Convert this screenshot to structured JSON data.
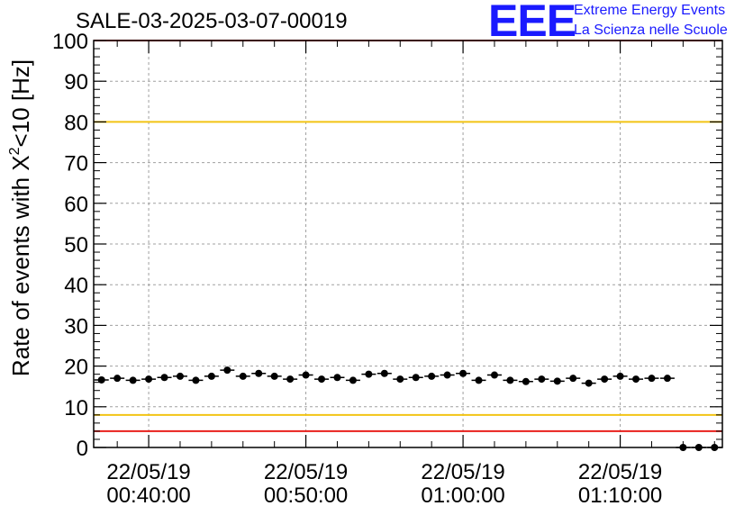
{
  "logo": {
    "letters": "EEE",
    "line1": "Extreme Energy Events",
    "line2": "La Scienza nelle Scuole"
  },
  "chart_data": {
    "type": "scatter",
    "title": "SALE-03-2025-03-07-00019",
    "ylabel_main": "Rate of events with X",
    "ylabel_sup": "2",
    "ylabel_tail": "<10 [Hz]",
    "xlabel": "",
    "ylim": [
      0,
      100
    ],
    "yticks": [
      0,
      10,
      20,
      30,
      40,
      50,
      60,
      70,
      80,
      90,
      100
    ],
    "xlim": [
      "2019-05-22 00:36:30",
      "2019-05-22 01:16:30"
    ],
    "xticks": [
      {
        "time": "2019-05-22 00:40:00",
        "date_label": "22/05/19",
        "time_label": "00:40:00"
      },
      {
        "time": "2019-05-22 00:50:00",
        "date_label": "22/05/19",
        "time_label": "00:50:00"
      },
      {
        "time": "2019-05-22 01:00:00",
        "date_label": "22/05/19",
        "time_label": "01:00:00"
      },
      {
        "time": "2019-05-22 01:10:00",
        "date_label": "22/05/19",
        "time_label": "01:10:00"
      }
    ],
    "grid": true,
    "reference_lines": [
      {
        "y": 100,
        "color": "#e8201c"
      },
      {
        "y": 80,
        "color": "#f2c414"
      },
      {
        "y": 8,
        "color": "#f2c414"
      },
      {
        "y": 4,
        "color": "#e8201c"
      }
    ],
    "series": [
      {
        "color": "#000000",
        "x": [
          "2019-05-22 00:37:00",
          "2019-05-22 00:38:00",
          "2019-05-22 00:39:00",
          "2019-05-22 00:40:00",
          "2019-05-22 00:41:00",
          "2019-05-22 00:42:00",
          "2019-05-22 00:43:00",
          "2019-05-22 00:44:00",
          "2019-05-22 00:45:00",
          "2019-05-22 00:46:00",
          "2019-05-22 00:47:00",
          "2019-05-22 00:48:00",
          "2019-05-22 00:49:00",
          "2019-05-22 00:50:00",
          "2019-05-22 00:51:00",
          "2019-05-22 00:52:00",
          "2019-05-22 00:53:00",
          "2019-05-22 00:54:00",
          "2019-05-22 00:55:00",
          "2019-05-22 00:56:00",
          "2019-05-22 00:57:00",
          "2019-05-22 00:58:00",
          "2019-05-22 00:59:00",
          "2019-05-22 01:00:00",
          "2019-05-22 01:01:00",
          "2019-05-22 01:02:00",
          "2019-05-22 01:03:00",
          "2019-05-22 01:04:00",
          "2019-05-22 01:05:00",
          "2019-05-22 01:06:00",
          "2019-05-22 01:07:00",
          "2019-05-22 01:08:00",
          "2019-05-22 01:09:00",
          "2019-05-22 01:10:00",
          "2019-05-22 01:11:00",
          "2019-05-22 01:12:00",
          "2019-05-22 01:13:00",
          "2019-05-22 01:14:00",
          "2019-05-22 01:15:00",
          "2019-05-22 01:16:00"
        ],
        "y": [
          16.6,
          17.0,
          16.5,
          16.8,
          17.2,
          17.5,
          16.5,
          17.5,
          19.0,
          17.5,
          18.2,
          17.5,
          16.8,
          17.8,
          16.8,
          17.2,
          16.5,
          18.0,
          18.2,
          16.8,
          17.2,
          17.5,
          17.8,
          18.2,
          16.5,
          17.8,
          16.5,
          16.2,
          16.8,
          16.3,
          17.0,
          15.8,
          16.8,
          17.5,
          16.8,
          17.0,
          17.0,
          0,
          0,
          0
        ],
        "y_err": [
          0.5,
          0.5,
          0.5,
          0.5,
          0.5,
          0.5,
          0.5,
          0.5,
          0.5,
          0.5,
          0.5,
          0.5,
          0.5,
          0.5,
          0.5,
          0.5,
          0.5,
          0.5,
          0.5,
          0.5,
          0.5,
          0.5,
          0.5,
          0.5,
          0.5,
          0.5,
          0.5,
          0.5,
          0.5,
          0.5,
          0.5,
          0.5,
          0.5,
          0.5,
          0.5,
          0.5,
          0.5,
          0,
          0,
          0
        ]
      }
    ]
  }
}
